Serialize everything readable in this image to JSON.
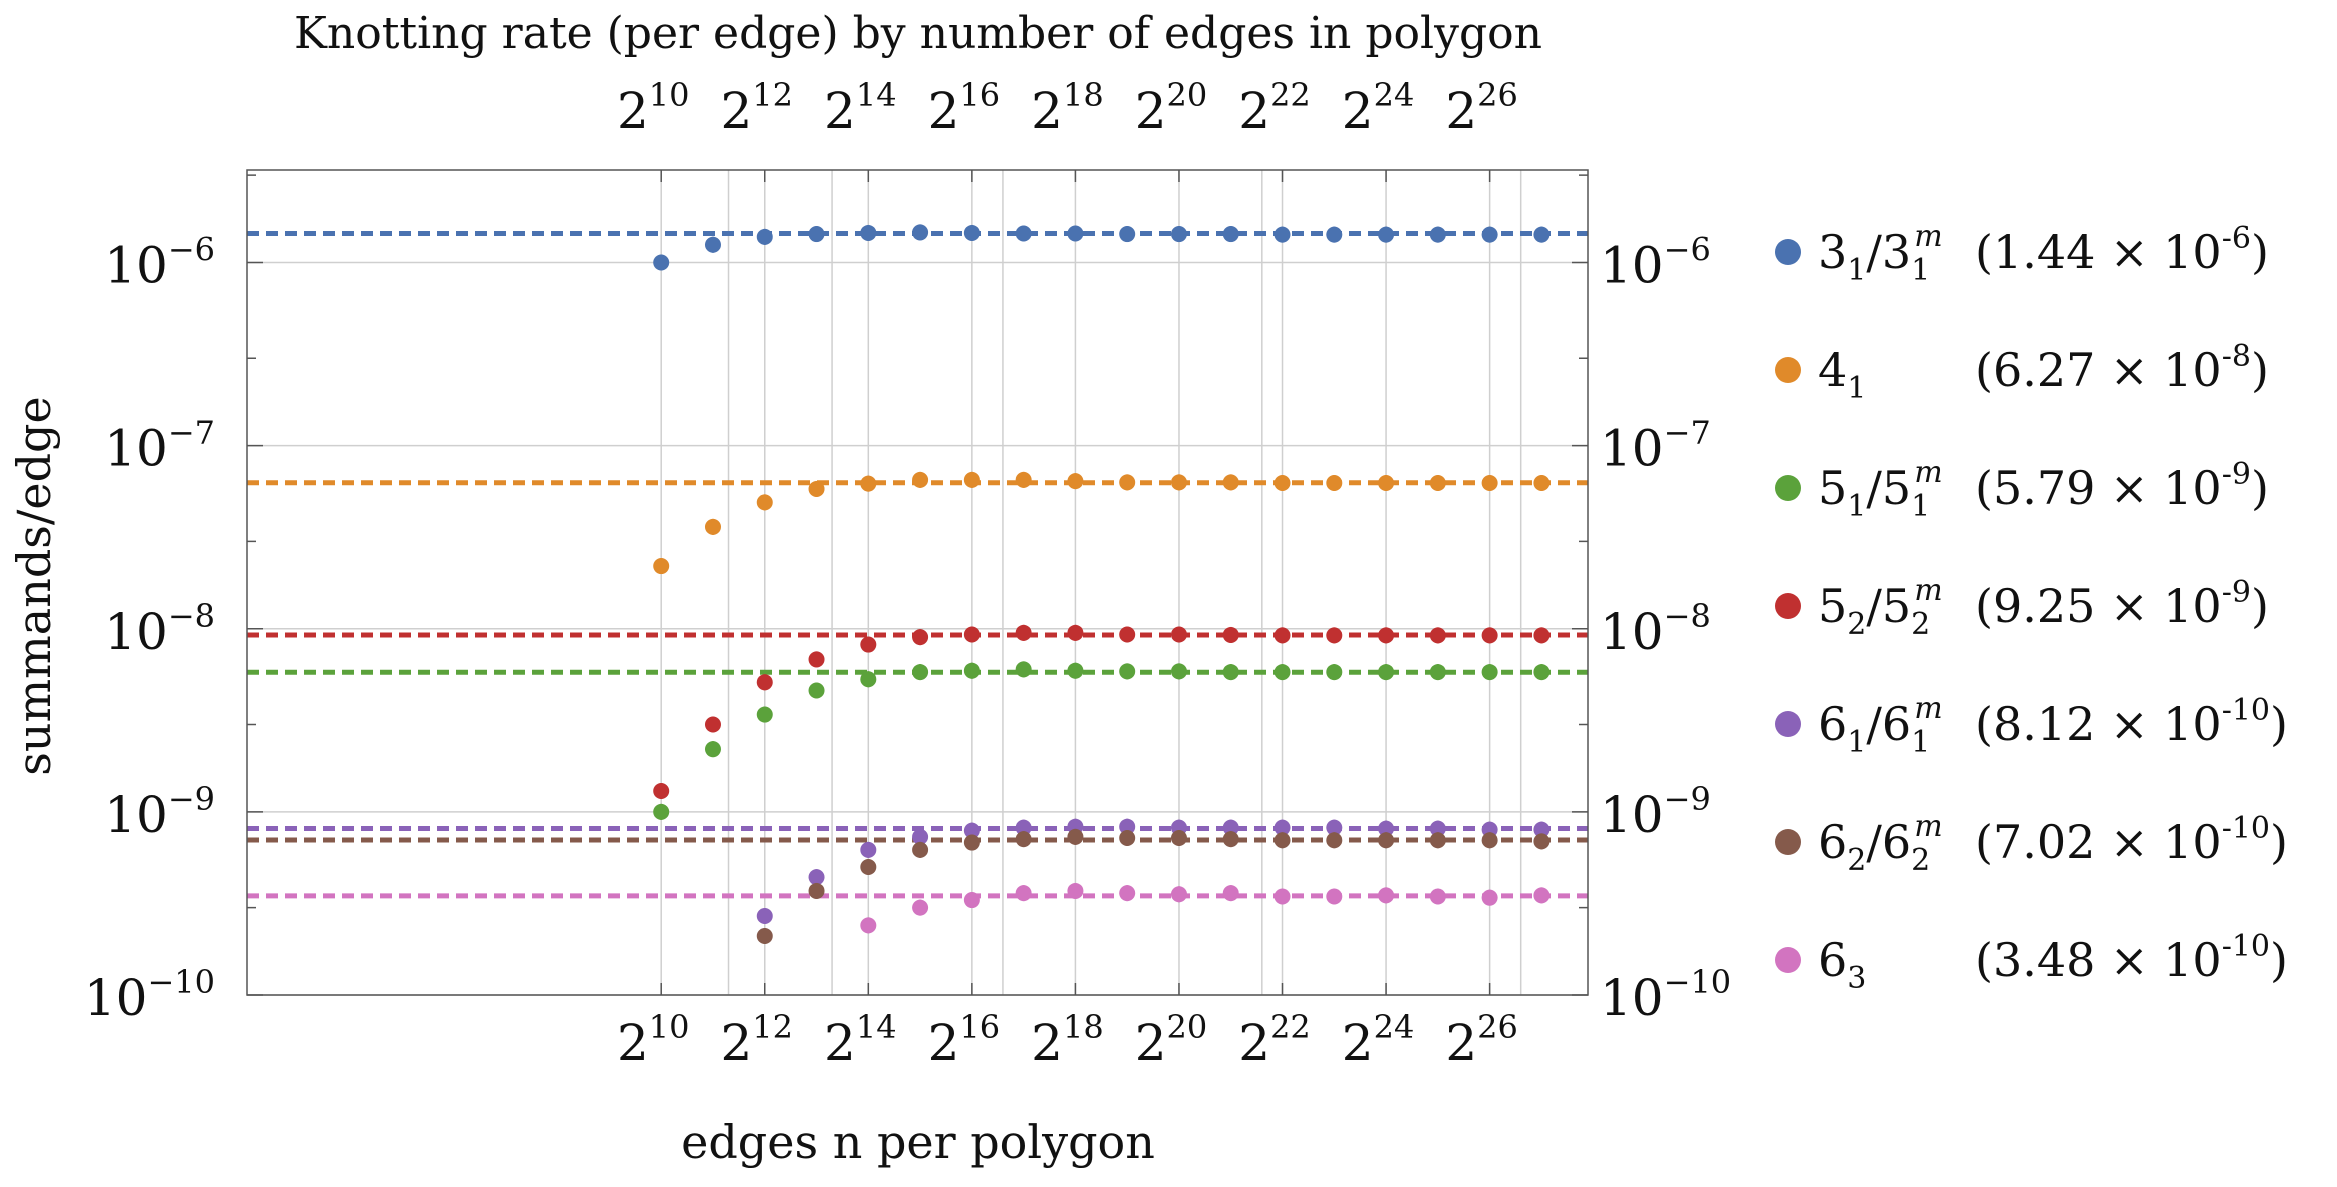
{
  "chart_data": {
    "type": "scatter",
    "title": "Knotting rate (per edge) by number of edges in polygon",
    "xlabel": "edges n per polygon",
    "ylabel": "summands/edge",
    "x_scale": "log2",
    "y_scale": "log10",
    "xlim": [
      2.0,
      27.9
    ],
    "ylim": [
      1e-10,
      3.2e-06
    ],
    "x_ticks": [
      {
        "base": "2",
        "exp": "10",
        "value": 10
      },
      {
        "base": "2",
        "exp": "12",
        "value": 12
      },
      {
        "base": "2",
        "exp": "14",
        "value": 14
      },
      {
        "base": "2",
        "exp": "16",
        "value": 16
      },
      {
        "base": "2",
        "exp": "18",
        "value": 18
      },
      {
        "base": "2",
        "exp": "20",
        "value": 20
      },
      {
        "base": "2",
        "exp": "22",
        "value": 22
      },
      {
        "base": "2",
        "exp": "24",
        "value": 24
      },
      {
        "base": "2",
        "exp": "26",
        "value": 26
      }
    ],
    "y_ticks": [
      {
        "base": "10",
        "exp": "−6",
        "value": -6
      },
      {
        "base": "10",
        "exp": "−7",
        "value": -7
      },
      {
        "base": "10",
        "exp": "−8",
        "value": -8
      },
      {
        "base": "10",
        "exp": "−9",
        "value": -9
      },
      {
        "base": "10",
        "exp": "−10",
        "value": -10
      }
    ],
    "x_exponents": [
      10,
      11,
      12,
      13,
      14,
      15,
      16,
      17,
      18,
      19,
      20,
      21,
      22,
      23,
      24,
      25,
      26,
      27
    ],
    "grid": true,
    "legend_position": "right",
    "series": [
      {
        "name": "3₁/3₁ᵐ",
        "knot": {
          "main": "3",
          "sub": "1",
          "mirror": true
        },
        "rate_label": "(1.44 × 10⁻⁶)",
        "rate_mant": "1.44",
        "rate_exp": "-6",
        "color": "#4a72b0",
        "fit": 1.44e-06,
        "values": [
          1e-06,
          1.25e-06,
          1.38e-06,
          1.43e-06,
          1.45e-06,
          1.46e-06,
          1.45e-06,
          1.44e-06,
          1.44e-06,
          1.43e-06,
          1.43e-06,
          1.43e-06,
          1.42e-06,
          1.42e-06,
          1.42e-06,
          1.42e-06,
          1.42e-06,
          1.42e-06
        ]
      },
      {
        "name": "4₁",
        "knot": {
          "main": "4",
          "sub": "1",
          "mirror": false
        },
        "rate_label": "(6.27 × 10⁻⁸)",
        "rate_mant": "6.27",
        "rate_exp": "-8",
        "color": "#e08a2a",
        "fit": 6.27e-08,
        "values": [
          2.2e-08,
          3.6e-08,
          4.9e-08,
          5.8e-08,
          6.2e-08,
          6.5e-08,
          6.5e-08,
          6.5e-08,
          6.4e-08,
          6.3e-08,
          6.3e-08,
          6.3e-08,
          6.25e-08,
          6.25e-08,
          6.25e-08,
          6.25e-08,
          6.25e-08,
          6.25e-08
        ]
      },
      {
        "name": "5₁/5₁ᵐ",
        "knot": {
          "main": "5",
          "sub": "1",
          "mirror": true
        },
        "rate_label": "(5.79 × 10⁻⁹)",
        "rate_mant": "5.79",
        "rate_exp": "-9",
        "color": "#5ba23b",
        "fit": 5.79e-09,
        "values": [
          1e-09,
          2.2e-09,
          3.4e-09,
          4.6e-09,
          5.3e-09,
          5.8e-09,
          5.9e-09,
          6e-09,
          5.9e-09,
          5.85e-09,
          5.85e-09,
          5.8e-09,
          5.8e-09,
          5.8e-09,
          5.8e-09,
          5.8e-09,
          5.8e-09,
          5.8e-09
        ]
      },
      {
        "name": "5₂/5₂ᵐ",
        "knot": {
          "main": "5",
          "sub": "2",
          "mirror": true
        },
        "rate_label": "(9.25 × 10⁻⁹)",
        "rate_mant": "9.25",
        "rate_exp": "-9",
        "color": "#c03030",
        "fit": 9.25e-09,
        "values": [
          1.3e-09,
          3e-09,
          5.1e-09,
          6.8e-09,
          8.2e-09,
          9e-09,
          9.3e-09,
          9.5e-09,
          9.5e-09,
          9.3e-09,
          9.3e-09,
          9.25e-09,
          9.2e-09,
          9.2e-09,
          9.2e-09,
          9.2e-09,
          9.2e-09,
          9.2e-09
        ]
      },
      {
        "name": "6₁/6₁ᵐ",
        "knot": {
          "main": "6",
          "sub": "1",
          "mirror": true
        },
        "rate_label": "(8.12 × 10⁻¹⁰)",
        "rate_mant": "8.12",
        "rate_exp": "-10",
        "color": "#8a62b8",
        "fit": 8.12e-10,
        "values": [
          null,
          null,
          2.7e-10,
          4.4e-10,
          6.2e-10,
          7.3e-10,
          7.9e-10,
          8.2e-10,
          8.3e-10,
          8.3e-10,
          8.2e-10,
          8.2e-10,
          8.2e-10,
          8.2e-10,
          8.1e-10,
          8.1e-10,
          8e-10,
          8e-10
        ]
      },
      {
        "name": "6₂/6₂ᵐ",
        "knot": {
          "main": "6",
          "sub": "2",
          "mirror": true
        },
        "rate_label": "(7.02 × 10⁻¹⁰)",
        "rate_mant": "7.02",
        "rate_exp": "-10",
        "color": "#855a4b",
        "fit": 7.02e-10,
        "values": [
          null,
          null,
          2.1e-10,
          3.7e-10,
          5e-10,
          6.2e-10,
          6.8e-10,
          7.1e-10,
          7.3e-10,
          7.2e-10,
          7.2e-10,
          7.1e-10,
          7e-10,
          7e-10,
          7e-10,
          7e-10,
          7e-10,
          6.9e-10
        ]
      },
      {
        "name": "6₃",
        "knot": {
          "main": "6",
          "sub": "3",
          "mirror": false
        },
        "rate_label": "(3.48 × 10⁻¹⁰)",
        "rate_mant": "3.48",
        "rate_exp": "-10",
        "color": "#d274c0",
        "fit": 3.48e-10,
        "values": [
          null,
          null,
          null,
          null,
          2.4e-10,
          3e-10,
          3.3e-10,
          3.6e-10,
          3.7e-10,
          3.6e-10,
          3.55e-10,
          3.6e-10,
          3.45e-10,
          3.45e-10,
          3.5e-10,
          3.45e-10,
          3.4e-10,
          3.5e-10
        ]
      }
    ]
  }
}
